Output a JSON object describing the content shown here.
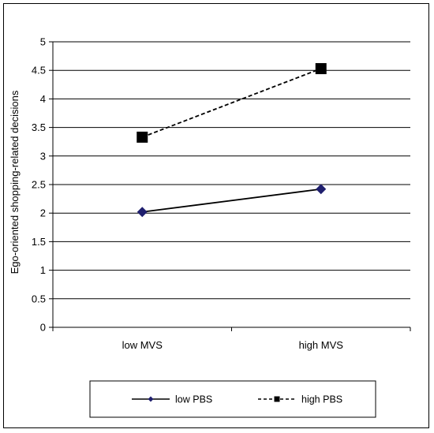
{
  "chart_data": {
    "type": "line",
    "title": "",
    "xlabel": "",
    "ylabel": "Ego-oriented shopping-related decisions",
    "categories": [
      "low MVS",
      "high MVS"
    ],
    "ylim": [
      0,
      5
    ],
    "y_ticks": [
      0,
      0.5,
      1,
      1.5,
      2,
      2.5,
      3,
      3.5,
      4,
      4.5,
      5
    ],
    "y_tick_labels": [
      "0",
      "0.5",
      "1",
      "1.5",
      "2",
      "2.5",
      "3",
      "3.5",
      "4",
      "4.5",
      "5"
    ],
    "grid": true,
    "legend_position": "bottom",
    "series": [
      {
        "name": "low PBS",
        "values": [
          2.02,
          2.42
        ],
        "color": "#000000",
        "marker": "diamond",
        "marker_color": "#1f1f6e",
        "line_style": "solid"
      },
      {
        "name": "high PBS",
        "values": [
          3.33,
          4.53
        ],
        "color": "#000000",
        "marker": "square",
        "marker_color": "#000000",
        "line_style": "dashed"
      }
    ]
  }
}
